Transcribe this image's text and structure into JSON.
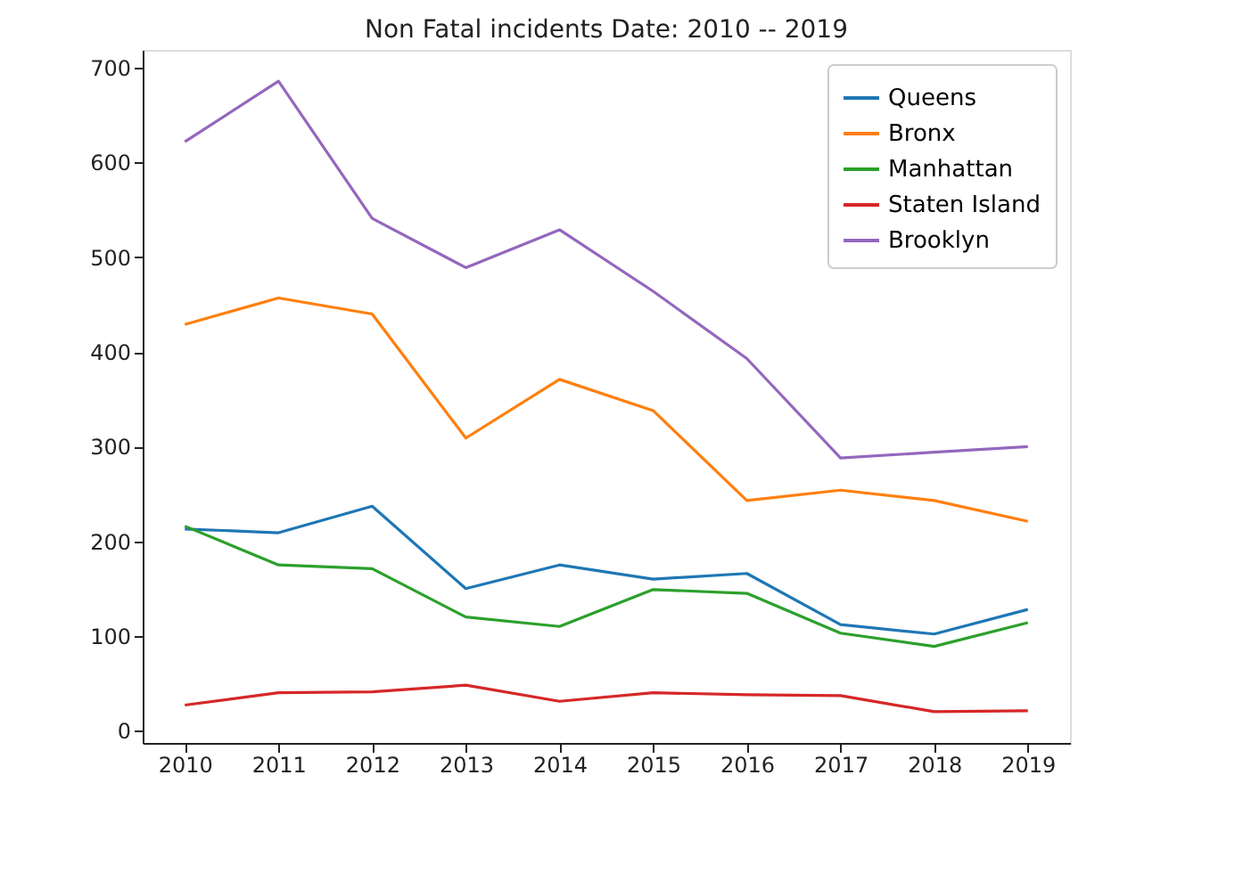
{
  "chart_data": {
    "type": "line",
    "title": "Non Fatal incidents    Date: 2010 -- 2019",
    "x": [
      2010,
      2011,
      2012,
      2013,
      2014,
      2015,
      2016,
      2017,
      2018,
      2019
    ],
    "xlim": [
      2009.55,
      2019.45
    ],
    "xticks": [
      2010,
      2011,
      2012,
      2013,
      2014,
      2015,
      2016,
      2017,
      2018,
      2019
    ],
    "ylim": [
      -13,
      719
    ],
    "yticks": [
      0,
      100,
      200,
      300,
      400,
      500,
      600,
      700
    ],
    "grid": false,
    "legend": "top right",
    "marker": "none",
    "line_style": "solid",
    "series": [
      {
        "name": "Queens",
        "color": "#1f77b4",
        "values": [
          213,
          209,
          237,
          150,
          175,
          160,
          166,
          112,
          102,
          128
        ]
      },
      {
        "name": "Bronx",
        "color": "#ff7f0e",
        "values": [
          429,
          457,
          440,
          309,
          371,
          338,
          243,
          254,
          243,
          221
        ]
      },
      {
        "name": "Manhattan",
        "color": "#2ca02c",
        "values": [
          216,
          175,
          171,
          120,
          110,
          149,
          145,
          103,
          89,
          114
        ]
      },
      {
        "name": "Staten Island",
        "color": "#d62728",
        "values": [
          27,
          40,
          41,
          48,
          31,
          40,
          38,
          37,
          20,
          21
        ]
      },
      {
        "name": "Brooklyn",
        "color": "#9467bd",
        "values": [
          622,
          686,
          541,
          489,
          529,
          464,
          393,
          288,
          294,
          300
        ]
      }
    ]
  }
}
